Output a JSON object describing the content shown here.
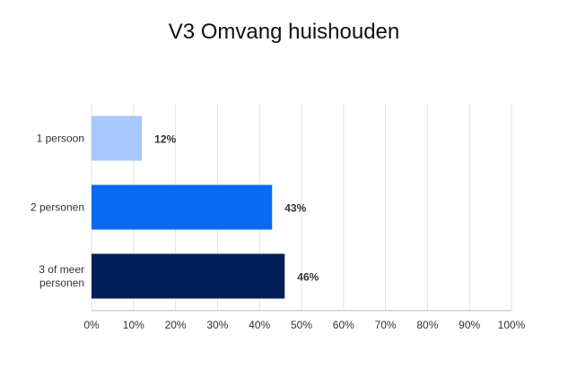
{
  "chart_data": {
    "type": "bar",
    "orientation": "horizontal",
    "title": "V3 Omvang huishouden",
    "categories": [
      "1 persoon",
      "2 personen",
      "3 of meer personen"
    ],
    "category_label_lines": [
      [
        "1 persoon"
      ],
      [
        "2 personen"
      ],
      [
        "3 of meer",
        "personen"
      ]
    ],
    "values": [
      12,
      43,
      46
    ],
    "data_labels": [
      "12%",
      "43%",
      "46%"
    ],
    "colors": [
      "#a8c7fa",
      "#0b6bf0",
      "#001e57"
    ],
    "xlim": [
      0,
      100
    ],
    "x_ticks": [
      0,
      10,
      20,
      30,
      40,
      50,
      60,
      70,
      80,
      90,
      100
    ],
    "x_tick_labels": [
      "0%",
      "10%",
      "20%",
      "30%",
      "40%",
      "50%",
      "60%",
      "70%",
      "80%",
      "90%",
      "100%"
    ],
    "grid": true,
    "legend": "none"
  }
}
